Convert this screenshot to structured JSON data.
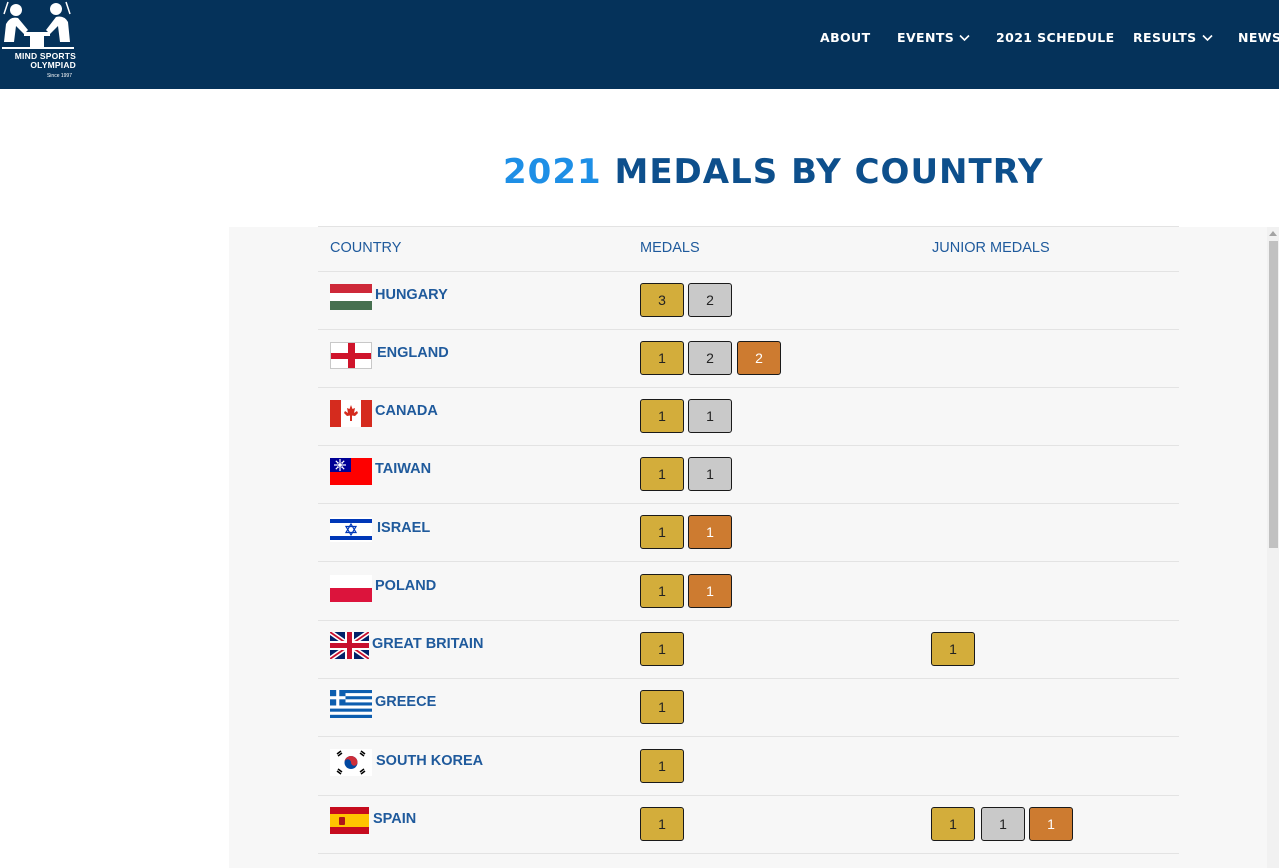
{
  "brand": {
    "name_line1": "MIND SPORTS",
    "name_line2": "OLYMPIAD",
    "since": "Since 1997"
  },
  "nav": {
    "items": [
      {
        "label": "ABOUT",
        "has_dropdown": false
      },
      {
        "label": "EVENTS",
        "has_dropdown": true
      },
      {
        "label": "2021 SCHEDULE",
        "has_dropdown": false
      },
      {
        "label": "RESULTS",
        "has_dropdown": true
      },
      {
        "label": "NEWS",
        "has_dropdown": false
      }
    ]
  },
  "page": {
    "title_year": "2021",
    "title_rest": "MEDALS BY COUNTRY"
  },
  "table": {
    "headers": [
      "COUNTRY",
      "MEDALS",
      "JUNIOR MEDALS"
    ],
    "rows": [
      {
        "country": "HUNGARY",
        "flag": "hungary-flag",
        "medals": {
          "gold": "3",
          "silver": "2"
        },
        "junior": {}
      },
      {
        "country": "ENGLAND",
        "flag": "england-flag",
        "medals": {
          "gold": "1",
          "silver": "2",
          "bronze": "2"
        },
        "junior": {}
      },
      {
        "country": "CANADA",
        "flag": "canada-flag",
        "medals": {
          "gold": "1",
          "silver": "1"
        },
        "junior": {}
      },
      {
        "country": "TAIWAN",
        "flag": "taiwan-flag",
        "medals": {
          "gold": "1",
          "silver": "1"
        },
        "junior": {}
      },
      {
        "country": "ISRAEL",
        "flag": "israel-flag",
        "medals": {
          "gold": "1",
          "bronze": "1"
        },
        "junior": {}
      },
      {
        "country": "POLAND",
        "flag": "poland-flag",
        "medals": {
          "gold": "1",
          "bronze": "1"
        },
        "junior": {}
      },
      {
        "country": "GREAT BRITAIN",
        "flag": "great-britain-flag",
        "medals": {
          "gold": "1"
        },
        "junior": {
          "gold": "1"
        }
      },
      {
        "country": "GREECE",
        "flag": "greece-flag",
        "medals": {
          "gold": "1"
        },
        "junior": {}
      },
      {
        "country": "SOUTH KOREA",
        "flag": "south-korea-flag",
        "medals": {
          "gold": "1"
        },
        "junior": {}
      },
      {
        "country": "SPAIN",
        "flag": "spain-flag",
        "medals": {
          "gold": "1"
        },
        "junior": {
          "gold": "1",
          "silver": "1",
          "bronze": "1"
        }
      }
    ]
  },
  "colors": {
    "header_bg": "#05325a",
    "title_year": "#1e8fe6",
    "title_rest": "#0d4f8c",
    "gold": "#d3ad3b",
    "silver": "#c9c9c9",
    "bronze": "#cd7b30"
  }
}
